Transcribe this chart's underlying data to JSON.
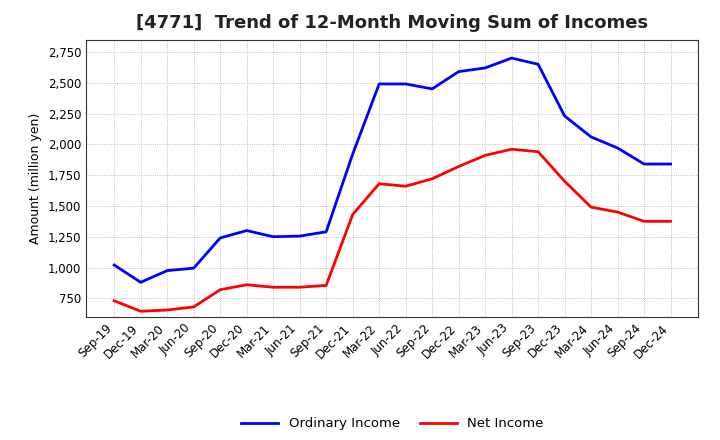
{
  "title": "[4771]  Trend of 12-Month Moving Sum of Incomes",
  "ylabel": "Amount (million yen)",
  "background_color": "#ffffff",
  "plot_background_color": "#ffffff",
  "grid_color": "#aaaaaa",
  "x_labels": [
    "Sep-19",
    "Dec-19",
    "Mar-20",
    "Jun-20",
    "Sep-20",
    "Dec-20",
    "Mar-21",
    "Jun-21",
    "Sep-21",
    "Dec-21",
    "Mar-22",
    "Jun-22",
    "Sep-22",
    "Dec-22",
    "Mar-23",
    "Jun-23",
    "Sep-23",
    "Dec-23",
    "Mar-24",
    "Jun-24",
    "Sep-24",
    "Dec-24"
  ],
  "ordinary_income": [
    1020,
    880,
    975,
    995,
    1240,
    1300,
    1250,
    1255,
    1290,
    1920,
    2490,
    2490,
    2450,
    2590,
    2620,
    2700,
    2650,
    2230,
    2060,
    1970,
    1840,
    1840
  ],
  "net_income": [
    730,
    645,
    655,
    680,
    820,
    860,
    840,
    840,
    855,
    1430,
    1680,
    1660,
    1720,
    1820,
    1910,
    1960,
    1940,
    1700,
    1490,
    1450,
    1375,
    1375
  ],
  "ordinary_color": "#0000ff",
  "net_color": "#ff0000",
  "ylim_min": 600,
  "ylim_max": 2850,
  "yticks": [
    750,
    1000,
    1250,
    1500,
    1750,
    2000,
    2250,
    2500,
    2750
  ],
  "line_width": 2.0,
  "legend_labels": [
    "Ordinary Income",
    "Net Income"
  ],
  "title_fontsize": 13,
  "axis_fontsize": 9,
  "tick_fontsize": 8.5
}
